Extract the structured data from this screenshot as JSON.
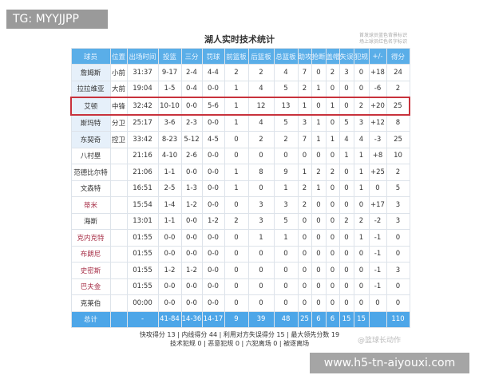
{
  "watermark_top": "TG: MYYJJPP",
  "watermark_bottom": "www.h5-tn-aiyouxi.com",
  "title": "湖人实时技术统计",
  "note_lines": [
    "首发球员蓝色背景标识",
    "场上球员红色名字标识"
  ],
  "headers": [
    "球员",
    "位置",
    "出场时间",
    "投篮",
    "三分",
    "罚球",
    "前篮板",
    "后篮板",
    "总篮板",
    "助攻",
    "抢断",
    "盖帽",
    "失误",
    "犯规",
    "+/-",
    "得分"
  ],
  "rows": [
    {
      "cells": [
        "詹姆斯",
        "小前",
        "31:37",
        "9-17",
        "2-4",
        "4-4",
        "2",
        "2",
        "4",
        "7",
        "0",
        "2",
        "3",
        "0",
        "+18",
        "24"
      ],
      "starter": true
    },
    {
      "cells": [
        "拉拉维亚",
        "大前",
        "19:04",
        "1-5",
        "0-4",
        "0-0",
        "1",
        "4",
        "5",
        "2",
        "1",
        "0",
        "0",
        "0",
        "-6",
        "2"
      ],
      "starter": true
    },
    {
      "cells": [
        "艾顿",
        "中锋",
        "32:42",
        "10-10",
        "0-0",
        "5-6",
        "1",
        "12",
        "13",
        "1",
        "0",
        "1",
        "0",
        "2",
        "+20",
        "25"
      ],
      "starter": true,
      "highlight": true
    },
    {
      "cells": [
        "斯玛特",
        "分卫",
        "25:17",
        "3-6",
        "2-3",
        "0-0",
        "1",
        "4",
        "5",
        "3",
        "1",
        "0",
        "5",
        "3",
        "+12",
        "8"
      ],
      "starter": true
    },
    {
      "cells": [
        "东契奇",
        "控卫",
        "33:42",
        "8-23",
        "5-12",
        "4-5",
        "0",
        "2",
        "2",
        "7",
        "1",
        "1",
        "4",
        "4",
        "-3",
        "25"
      ],
      "starter": true
    },
    {
      "cells": [
        "八村塁",
        "",
        "21:16",
        "4-10",
        "2-6",
        "0-0",
        "0",
        "0",
        "0",
        "0",
        "0",
        "0",
        "1",
        "1",
        "+8",
        "10"
      ]
    },
    {
      "cells": [
        "范德比尔特",
        "",
        "21:06",
        "1-1",
        "0-0",
        "0-0",
        "1",
        "8",
        "9",
        "1",
        "2",
        "2",
        "0",
        "1",
        "+25",
        "2"
      ]
    },
    {
      "cells": [
        "文森特",
        "",
        "16:51",
        "2-5",
        "1-3",
        "0-0",
        "1",
        "0",
        "1",
        "2",
        "1",
        "0",
        "0",
        "1",
        "0",
        "5"
      ]
    },
    {
      "cells": [
        "蒂米",
        "",
        "15:54",
        "1-4",
        "1-2",
        "0-0",
        "0",
        "3",
        "3",
        "2",
        "0",
        "0",
        "0",
        "0",
        "+17",
        "3"
      ],
      "red": true
    },
    {
      "cells": [
        "海斯",
        "",
        "13:01",
        "1-1",
        "0-0",
        "1-2",
        "2",
        "3",
        "5",
        "0",
        "0",
        "0",
        "2",
        "2",
        "-2",
        "3"
      ]
    },
    {
      "cells": [
        "克内克特",
        "",
        "01:55",
        "0-0",
        "0-0",
        "0-0",
        "0",
        "1",
        "1",
        "0",
        "0",
        "0",
        "0",
        "1",
        "-1",
        "0"
      ],
      "red": true
    },
    {
      "cells": [
        "布朗尼",
        "",
        "01:55",
        "0-0",
        "0-0",
        "0-0",
        "0",
        "0",
        "0",
        "0",
        "0",
        "0",
        "0",
        "0",
        "-1",
        "0"
      ],
      "red": true
    },
    {
      "cells": [
        "史密斯",
        "",
        "01:55",
        "1-2",
        "1-2",
        "0-0",
        "0",
        "0",
        "0",
        "0",
        "0",
        "0",
        "0",
        "0",
        "-1",
        "3"
      ],
      "red": true
    },
    {
      "cells": [
        "巴夫金",
        "",
        "01:55",
        "0-0",
        "0-0",
        "0-0",
        "0",
        "0",
        "0",
        "0",
        "0",
        "0",
        "0",
        "0",
        "-1",
        "0"
      ],
      "red": true
    },
    {
      "cells": [
        "克莱伯",
        "",
        "00:00",
        "0-0",
        "0-0",
        "0-0",
        "0",
        "0",
        "0",
        "0",
        "0",
        "0",
        "0",
        "0",
        "0",
        "0"
      ]
    }
  ],
  "totals": [
    "总计",
    "",
    "-",
    "41-84",
    "14-36",
    "14-17",
    "9",
    "39",
    "48",
    "25",
    "6",
    "6",
    "15",
    "15",
    "",
    "110"
  ],
  "footer_line1": "快攻得分 13 | 内线得分 44 | 利用对方失误得分 15 | 最大领先分数 19",
  "footer_line2": "技术犯规 0 | 恶意犯规 0 | 六犯离场 0 | 被逐离场",
  "source_watermark": "@篮球长动作",
  "colors": {
    "header": "#5aaee8",
    "total": "#4da6e8",
    "highlight_border": "#c8323c",
    "red_name": "#a8324a",
    "starter_bg": "#e6f0fa"
  }
}
